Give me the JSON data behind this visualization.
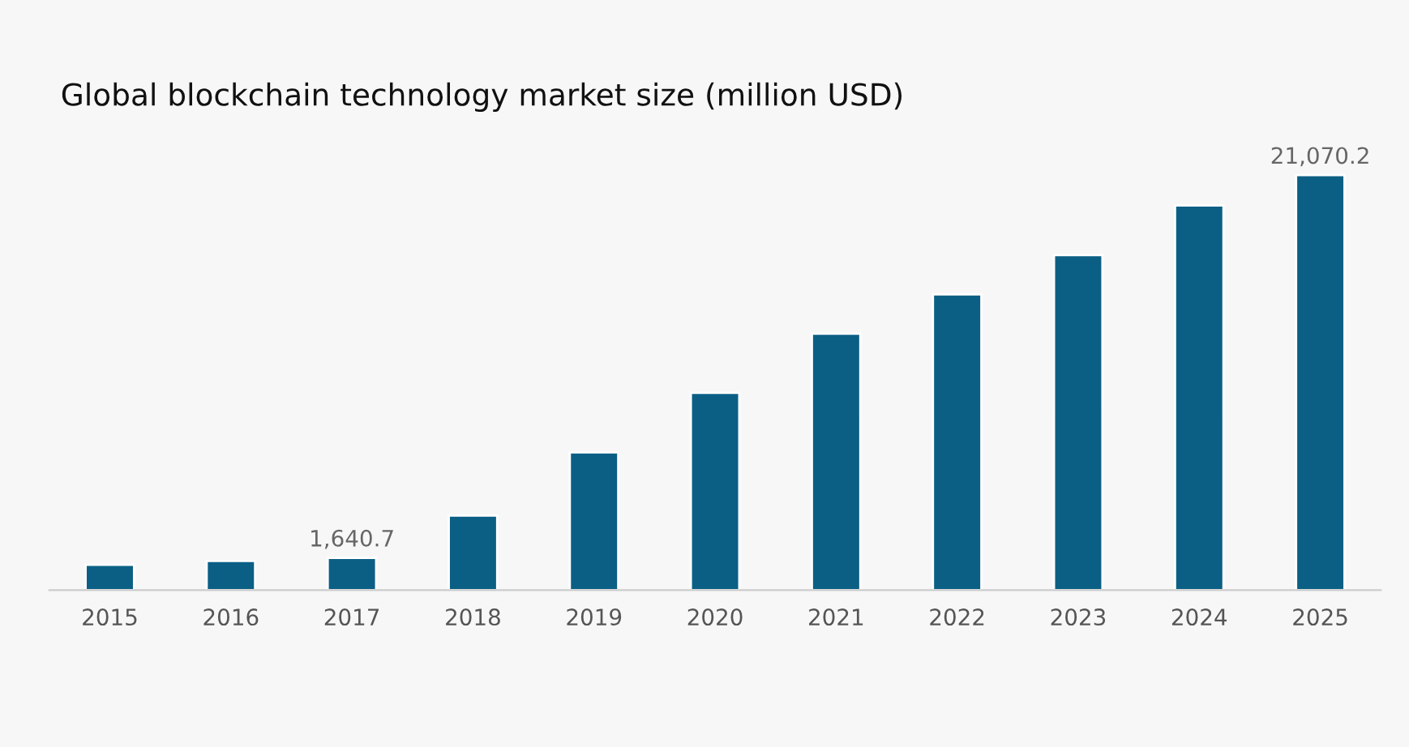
{
  "chart_data": {
    "type": "bar",
    "title": "Global blockchain technology market size (million USD)",
    "categories": [
      "2015",
      "2016",
      "2017",
      "2018",
      "2019",
      "2020",
      "2021",
      "2022",
      "2023",
      "2024",
      "2025"
    ],
    "values": [
      1290,
      1480,
      1640.7,
      3790,
      6990,
      10020,
      13020,
      15010,
      17010,
      19530,
      21070.2
    ],
    "value_labels": [
      null,
      null,
      "1,640.7",
      null,
      null,
      null,
      null,
      null,
      null,
      null,
      "21,070.2"
    ],
    "color": "#0b5f85",
    "grid": false,
    "legend": false
  }
}
